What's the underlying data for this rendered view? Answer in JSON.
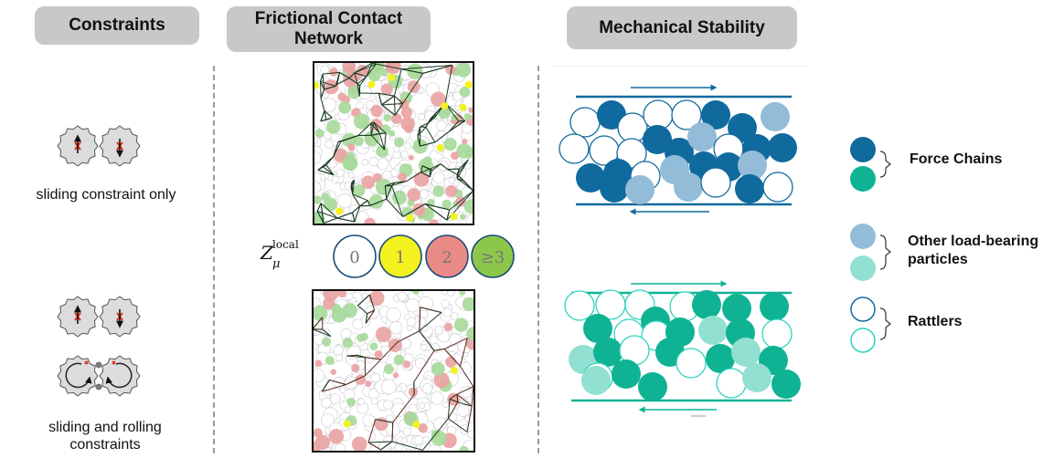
{
  "headers": {
    "constraints": "Constraints",
    "network": "Frictional Contact Network",
    "stability": "Mechanical Stability"
  },
  "captions": {
    "sliding_only": "sliding constraint only",
    "sliding_rolling": "sliding and rolling constraints"
  },
  "z_legend": {
    "symbol": "Z",
    "subscript": "μ",
    "superscript": "local",
    "items": [
      {
        "label": "0",
        "color": "#ffffff",
        "stroke": "#1d4e79",
        "text": "#777777"
      },
      {
        "label": "1",
        "color": "#f4f21e",
        "stroke": "#1d4e79",
        "text": "#777777"
      },
      {
        "label": "2",
        "color": "#ea8a86",
        "stroke": "#1d4e79",
        "text": "#777777"
      },
      {
        "label": "≥3",
        "color": "#8dc74a",
        "stroke": "#1d4e79",
        "text": "#777777"
      }
    ]
  },
  "legend": {
    "force_chains": "Force Chains",
    "other_load_bearing": "Other load-bearing particles",
    "rattlers": "Rattlers"
  },
  "colors": {
    "blue_dark": "#106a9e",
    "blue_light": "#93bcd8",
    "teal_dark": "#0fb394",
    "teal_light": "#92e0d2",
    "network_green": "#a6d99a",
    "network_pink": "#eaa2a2"
  }
}
